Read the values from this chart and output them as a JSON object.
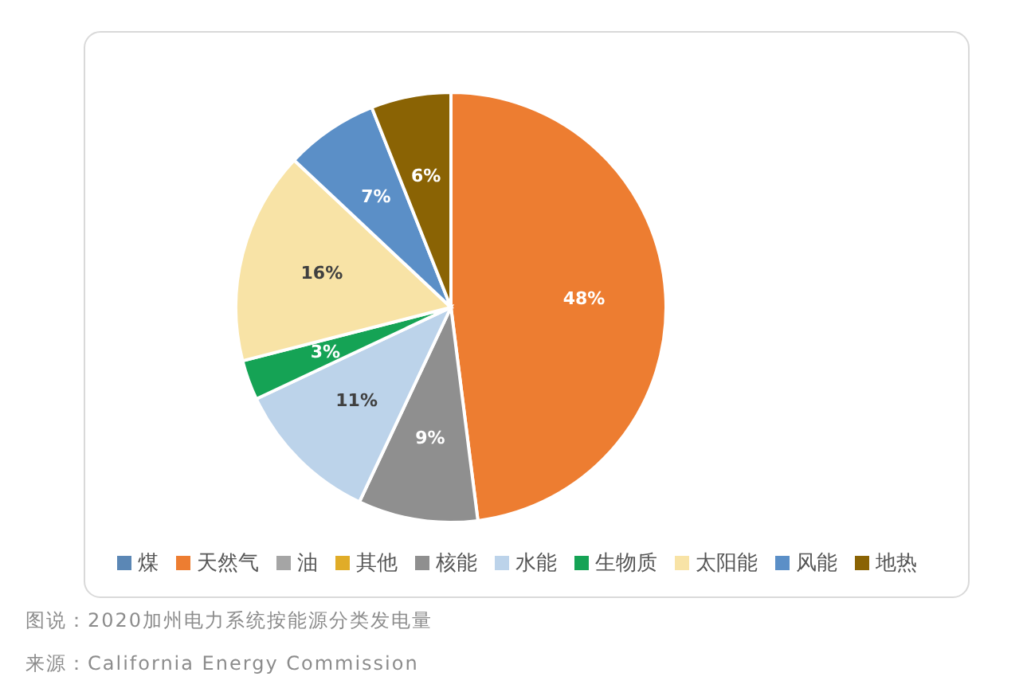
{
  "chart_data": {
    "type": "pie",
    "categories": [
      "煤",
      "天然气",
      "油",
      "其他",
      "核能",
      "水能",
      "生物质",
      "太阳能",
      "风能",
      "地热"
    ],
    "values": [
      0,
      48,
      0,
      0,
      9,
      11,
      3,
      16,
      7,
      6
    ],
    "value_labels": [
      null,
      "48%",
      null,
      null,
      "9%",
      "11%",
      "3%",
      "16%",
      "7%",
      "6%"
    ],
    "colors": [
      "#5b87b5",
      "#ed7d31",
      "#a5a5a5",
      "#e0ac28",
      "#8f8f8f",
      "#bcd3ea",
      "#15a355",
      "#f8e3a6",
      "#5b8fc7",
      "#8a6304"
    ],
    "legend": "bottom",
    "annotations": [
      "图说：2020加州电力系统按能源分类发电量",
      "来源：California Energy Commission"
    ]
  }
}
